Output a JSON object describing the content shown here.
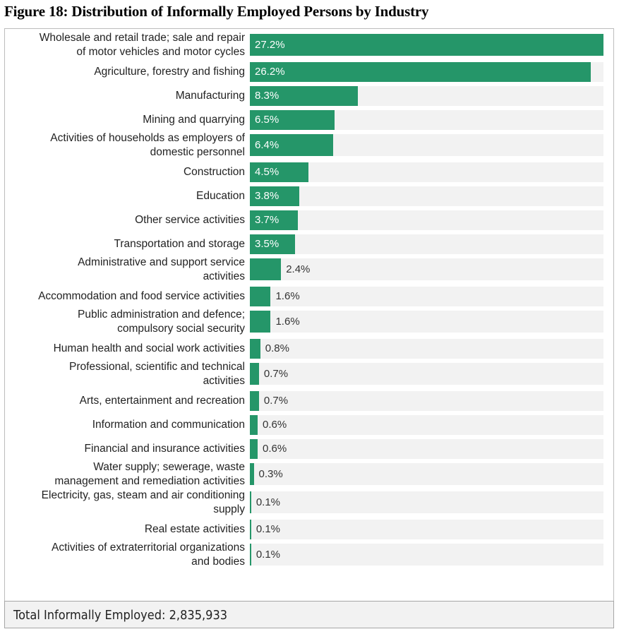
{
  "chart_data": {
    "type": "bar",
    "orientation": "horizontal",
    "title": "Figure 18: Distribution of Informally Employed Persons by Industry",
    "xlabel": "",
    "ylabel": "",
    "unit": "%",
    "xlim": [
      0,
      27.2
    ],
    "grid": false,
    "categories": [
      [
        "Wholesale and retail trade; sale and repair",
        "of motor vehicles and motor cycles"
      ],
      [
        "Agriculture, forestry and fishing"
      ],
      [
        "Manufacturing"
      ],
      [
        "Mining and quarrying"
      ],
      [
        "Activities of households as employers of",
        "domestic personnel"
      ],
      [
        "Construction"
      ],
      [
        "Education"
      ],
      [
        "Other service activities"
      ],
      [
        "Transportation and storage"
      ],
      [
        "Administrative and support service",
        "activities"
      ],
      [
        "Accommodation and food service activities"
      ],
      [
        "Public administration and defence;",
        "compulsory social security"
      ],
      [
        "Human health and social work activities"
      ],
      [
        "Professional, scientific and technical",
        "activities"
      ],
      [
        "Arts, entertainment and recreation"
      ],
      [
        "Information and communication"
      ],
      [
        "Financial and insurance activities"
      ],
      [
        "Water supply; sewerage, waste",
        "management and remediation activities"
      ],
      [
        "Electricity, gas, steam and air conditioning",
        "supply"
      ],
      [
        "Real estate activities"
      ],
      [
        "Activities of extraterritorial organizations",
        "and bodies"
      ]
    ],
    "values": [
      27.2,
      26.2,
      8.3,
      6.5,
      6.4,
      4.5,
      3.8,
      3.7,
      3.5,
      2.4,
      1.6,
      1.6,
      0.8,
      0.7,
      0.7,
      0.6,
      0.6,
      0.3,
      0.1,
      0.1,
      0.1
    ],
    "value_labels": [
      "27.2%",
      "26.2%",
      "8.3%",
      "6.5%",
      "6.4%",
      "4.5%",
      "3.8%",
      "3.7%",
      "3.5%",
      "2.4%",
      "1.6%",
      "1.6%",
      "0.8%",
      "0.7%",
      "0.7%",
      "0.6%",
      "0.6%",
      "0.3%",
      "0.1%",
      "0.1%",
      "0.1%"
    ],
    "bar_color": "#259669",
    "track_color": "#f2f2f2"
  },
  "footer": {
    "total_text": "Total Informally Employed: 2,835,933"
  }
}
